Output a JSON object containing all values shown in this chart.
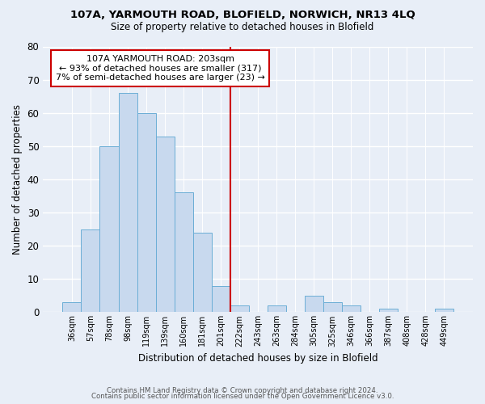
{
  "title1": "107A, YARMOUTH ROAD, BLOFIELD, NORWICH, NR13 4LQ",
  "title2": "Size of property relative to detached houses in Blofield",
  "xlabel": "Distribution of detached houses by size in Blofield",
  "ylabel": "Number of detached properties",
  "bar_labels": [
    "36sqm",
    "57sqm",
    "78sqm",
    "98sqm",
    "119sqm",
    "139sqm",
    "160sqm",
    "181sqm",
    "201sqm",
    "222sqm",
    "243sqm",
    "263sqm",
    "284sqm",
    "305sqm",
    "325sqm",
    "346sqm",
    "366sqm",
    "387sqm",
    "408sqm",
    "428sqm",
    "449sqm"
  ],
  "bar_values": [
    3,
    25,
    50,
    66,
    60,
    53,
    36,
    24,
    8,
    2,
    0,
    2,
    0,
    5,
    3,
    2,
    0,
    1,
    0,
    0,
    1
  ],
  "bar_color": "#c8d9ee",
  "bar_edge_color": "#6baed6",
  "vline_pos": 8.5,
  "vline_color": "#cc0000",
  "annotation_title": "107A YARMOUTH ROAD: 203sqm",
  "annotation_line1": "← 93% of detached houses are smaller (317)",
  "annotation_line2": "7% of semi-detached houses are larger (23) →",
  "annotation_box_color": "#ffffff",
  "annotation_box_edge": "#cc0000",
  "ylim": [
    0,
    80
  ],
  "yticks": [
    0,
    10,
    20,
    30,
    40,
    50,
    60,
    70,
    80
  ],
  "footer1": "Contains HM Land Registry data © Crown copyright and database right 2024.",
  "footer2": "Contains public sector information licensed under the Open Government Licence v3.0.",
  "background_color": "#e8eef7"
}
